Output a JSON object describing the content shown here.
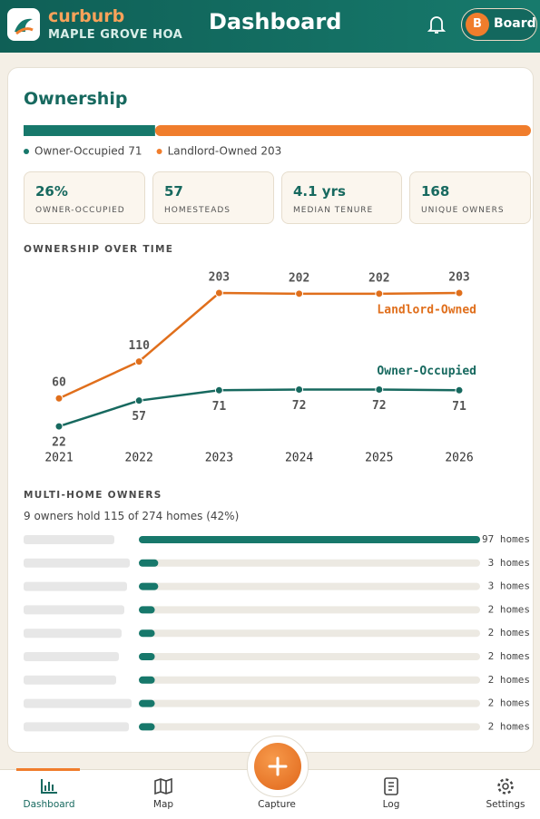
{
  "header": {
    "brand": "curburb",
    "community": "MAPLE GROVE HOA",
    "title": "Dashboard",
    "role_initial": "B",
    "role": "Board"
  },
  "card": {
    "title": "Ownership"
  },
  "split_bar": {
    "series": [
      {
        "name": "Owner-Occupied",
        "value": 71,
        "color": "#17786b"
      },
      {
        "name": "Landlord-Owned",
        "value": 203,
        "color": "#f07d2c"
      }
    ]
  },
  "stats": [
    {
      "value": "26%",
      "label": "OWNER-OCCUPIED"
    },
    {
      "value": "57",
      "label": "HOMESTEADS"
    },
    {
      "value": "4.1 yrs",
      "label": "MEDIAN TENURE"
    },
    {
      "value": "168",
      "label": "UNIQUE OWNERS"
    }
  ],
  "chart_data": [
    {
      "type": "line",
      "title": "OWNERSHIP OVER TIME",
      "categories": [
        "2021",
        "2022",
        "2023",
        "2024",
        "2025",
        "2026"
      ],
      "series": [
        {
          "name": "Landlord-Owned",
          "color": "#e06f1c",
          "values": [
            60,
            110,
            203,
            202,
            202,
            203
          ]
        },
        {
          "name": "Owner-Occupied",
          "color": "#17695f",
          "values": [
            22,
            57,
            71,
            72,
            72,
            71
          ]
        }
      ]
    },
    {
      "type": "hbar",
      "title": "MULTI-HOME OWNERS",
      "subtitle": "9 owners hold 115 of 274 homes (42%)",
      "categories": [
        null,
        null,
        null,
        null,
        null,
        null,
        null,
        null,
        null
      ],
      "values": [
        97,
        3,
        3,
        2,
        2,
        2,
        2,
        2,
        2
      ],
      "value_labels": [
        "97 homes",
        "3 homes",
        "3 homes",
        "2 homes",
        "2 homes",
        "2 homes",
        "2 homes",
        "2 homes",
        "2 homes"
      ],
      "color": "#17786b"
    }
  ],
  "nav": [
    {
      "label": "Dashboard",
      "active": true
    },
    {
      "label": "Map"
    },
    {
      "label": "Capture"
    },
    {
      "label": "Log"
    },
    {
      "label": "Settings"
    }
  ]
}
